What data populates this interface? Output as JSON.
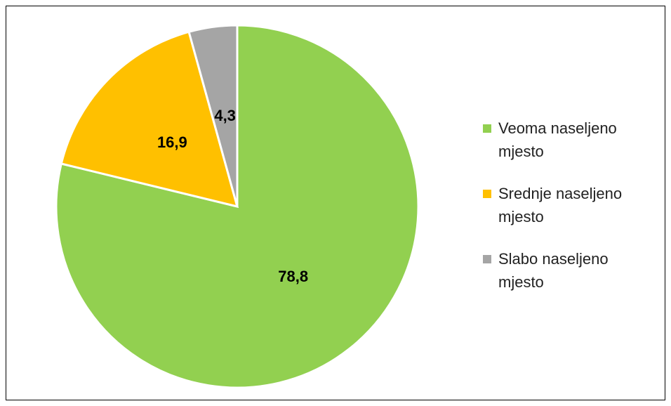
{
  "chart_data": {
    "type": "pie",
    "categories": [
      "Veoma naseljeno mjesto",
      "Srednje naseljeno mjesto",
      "Slabo naseljeno mjesto"
    ],
    "values": [
      78.8,
      16.9,
      4.3
    ],
    "value_labels": [
      "78,8",
      "16,9",
      "4,3"
    ],
    "colors": [
      "#92d050",
      "#ffc000",
      "#a5a5a5"
    ],
    "legend": "right"
  }
}
